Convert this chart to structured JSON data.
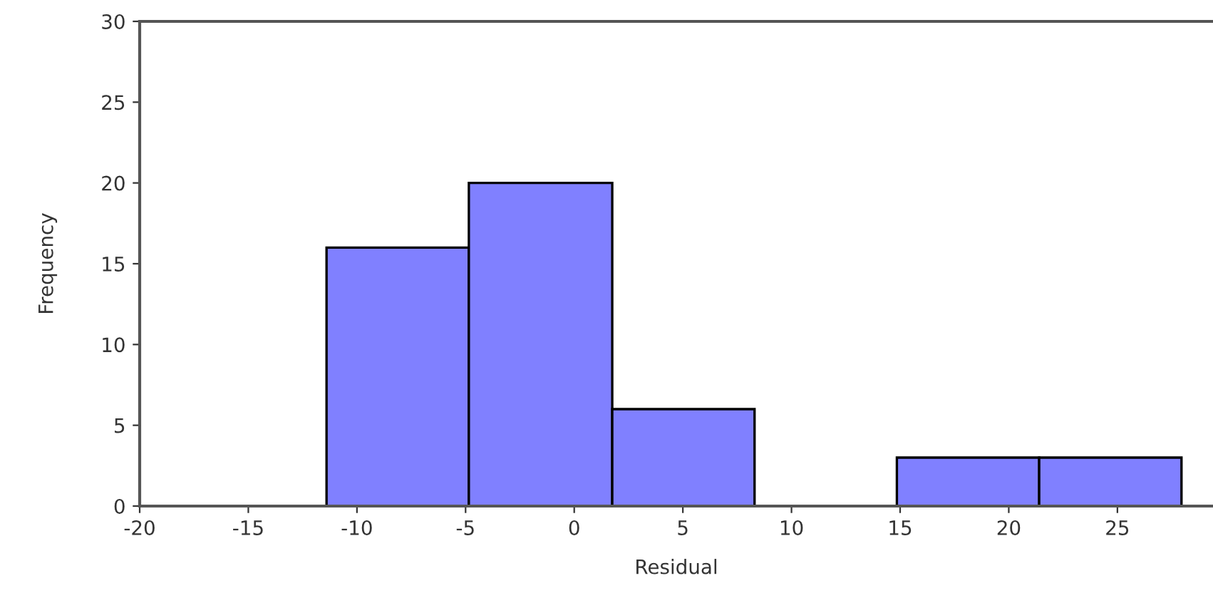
{
  "chart_data": {
    "type": "histogram",
    "xlabel": "Residual",
    "ylabel": "Frequency",
    "bins": [
      -11.4,
      -4.85,
      1.75,
      8.3,
      14.85,
      21.4,
      27.95
    ],
    "values": [
      16,
      20,
      6,
      0,
      3,
      3
    ],
    "color": "#8080ff",
    "xlim": [
      -20,
      29.4
    ],
    "xticks": [
      -20,
      -15,
      -10,
      -5,
      0,
      5,
      10,
      15,
      20,
      25
    ],
    "ylim": [
      0,
      30
    ],
    "yticks": [
      0,
      5,
      10,
      15,
      20,
      25,
      30
    ],
    "grid": false,
    "legend": false
  }
}
